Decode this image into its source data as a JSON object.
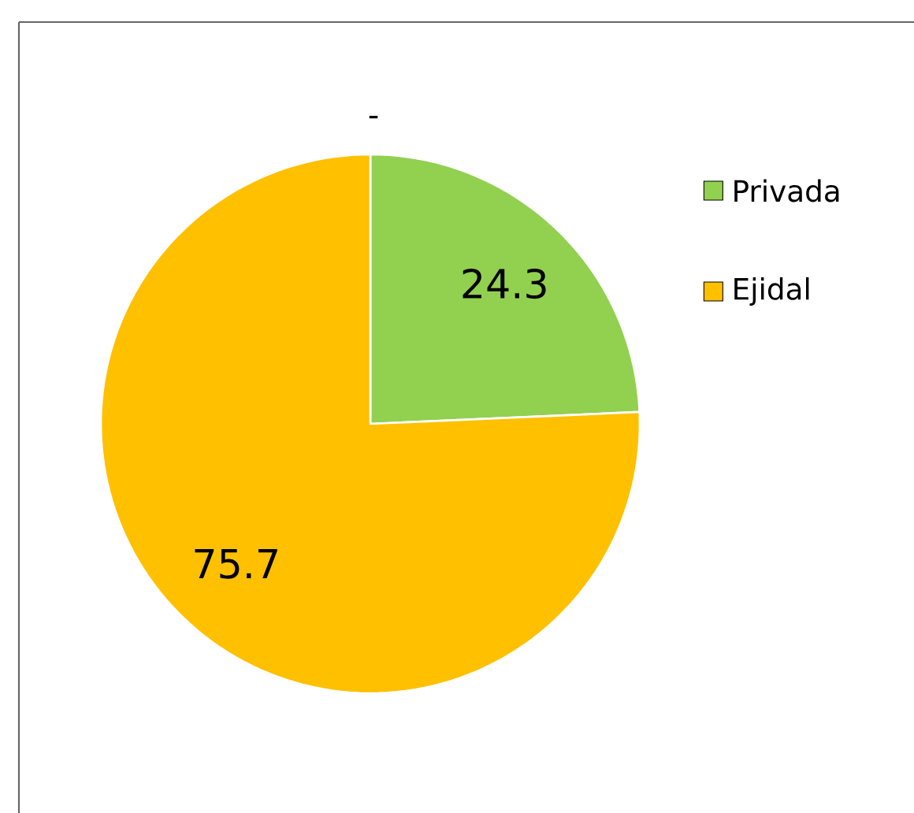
{
  "chart_data": {
    "type": "pie",
    "title": "-",
    "categories": [
      "Privada",
      "Ejidal"
    ],
    "values": [
      24.3,
      75.7
    ],
    "colors": [
      "#92d050",
      "#ffc000"
    ],
    "data_labels": true,
    "legend": "right"
  }
}
